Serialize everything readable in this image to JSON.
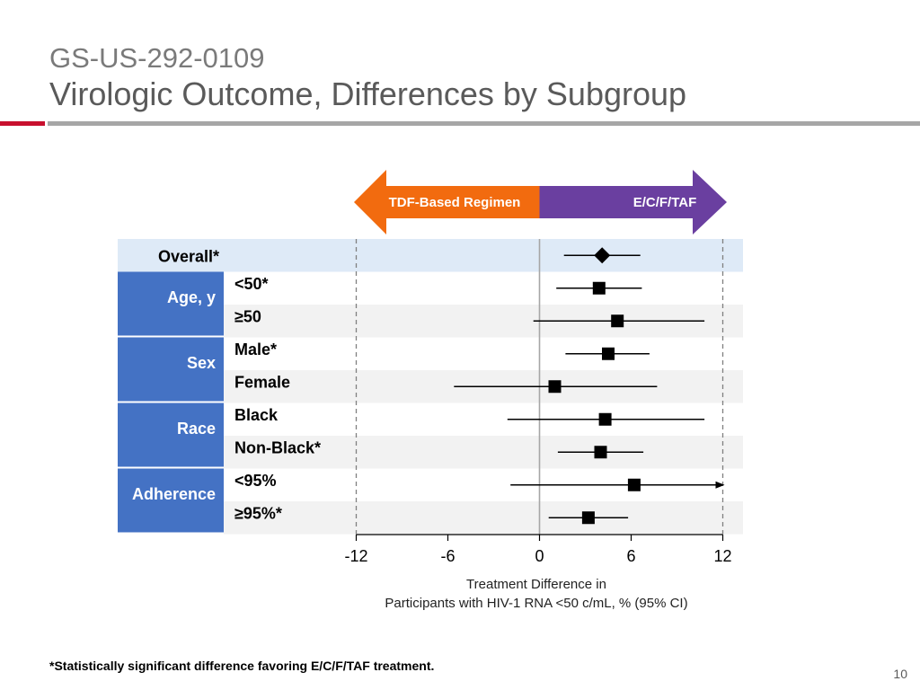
{
  "header": {
    "study_id": "GS-US-292-0109",
    "title": "Virologic Outcome, Differences by Subgroup"
  },
  "arrows": {
    "left_label": "TDF-Based Regimen",
    "right_label": "E/C/F/TAF",
    "left_color": "#f26b0f",
    "right_color": "#6a3fa0"
  },
  "colors": {
    "group_box": "#4472c4",
    "overall_band": "#deeaf7",
    "alt_band": "#f2f2f2",
    "marker": "#000000"
  },
  "chart_data": {
    "type": "forest",
    "xlim": [
      -12,
      12
    ],
    "xticks": [
      "-12",
      "-6",
      "0",
      "6",
      "12"
    ],
    "xlabel": "Treatment Difference in",
    "xlabel_line2": "Participants with HIV-1 RNA <50 c/mL, % (95% CI)",
    "reference_lines": [
      -12,
      0,
      12
    ],
    "overall": {
      "label": "Overall*",
      "estimate": 4.1,
      "ci": [
        1.6,
        6.6
      ],
      "marker": "diamond"
    },
    "groups": [
      {
        "name": "Age, y",
        "rows": [
          {
            "label": "<50*",
            "estimate": 3.9,
            "ci": [
              1.1,
              6.7
            ]
          },
          {
            "label": "≥50",
            "estimate": 5.1,
            "ci": [
              -0.4,
              10.8
            ]
          }
        ]
      },
      {
        "name": "Sex",
        "rows": [
          {
            "label": "Male*",
            "estimate": 4.5,
            "ci": [
              1.7,
              7.2
            ]
          },
          {
            "label": "Female",
            "estimate": 1.0,
            "ci": [
              -5.6,
              7.7
            ]
          }
        ]
      },
      {
        "name": "Race",
        "rows": [
          {
            "label": "Black",
            "estimate": 4.3,
            "ci": [
              -2.1,
              10.8
            ]
          },
          {
            "label": "Non-Black*",
            "estimate": 4.0,
            "ci": [
              1.2,
              6.8
            ]
          }
        ]
      },
      {
        "name": "Adherence",
        "rows": [
          {
            "label": "<95%",
            "estimate": 6.2,
            "ci": [
              -1.9,
              12
            ],
            "arrow_right": true
          },
          {
            "label": "≥95%*",
            "estimate": 3.2,
            "ci": [
              0.6,
              5.8
            ]
          }
        ]
      }
    ]
  },
  "footnote": "*Statistically significant difference favoring E/C/F/TAF treatment.",
  "page_number": "10"
}
